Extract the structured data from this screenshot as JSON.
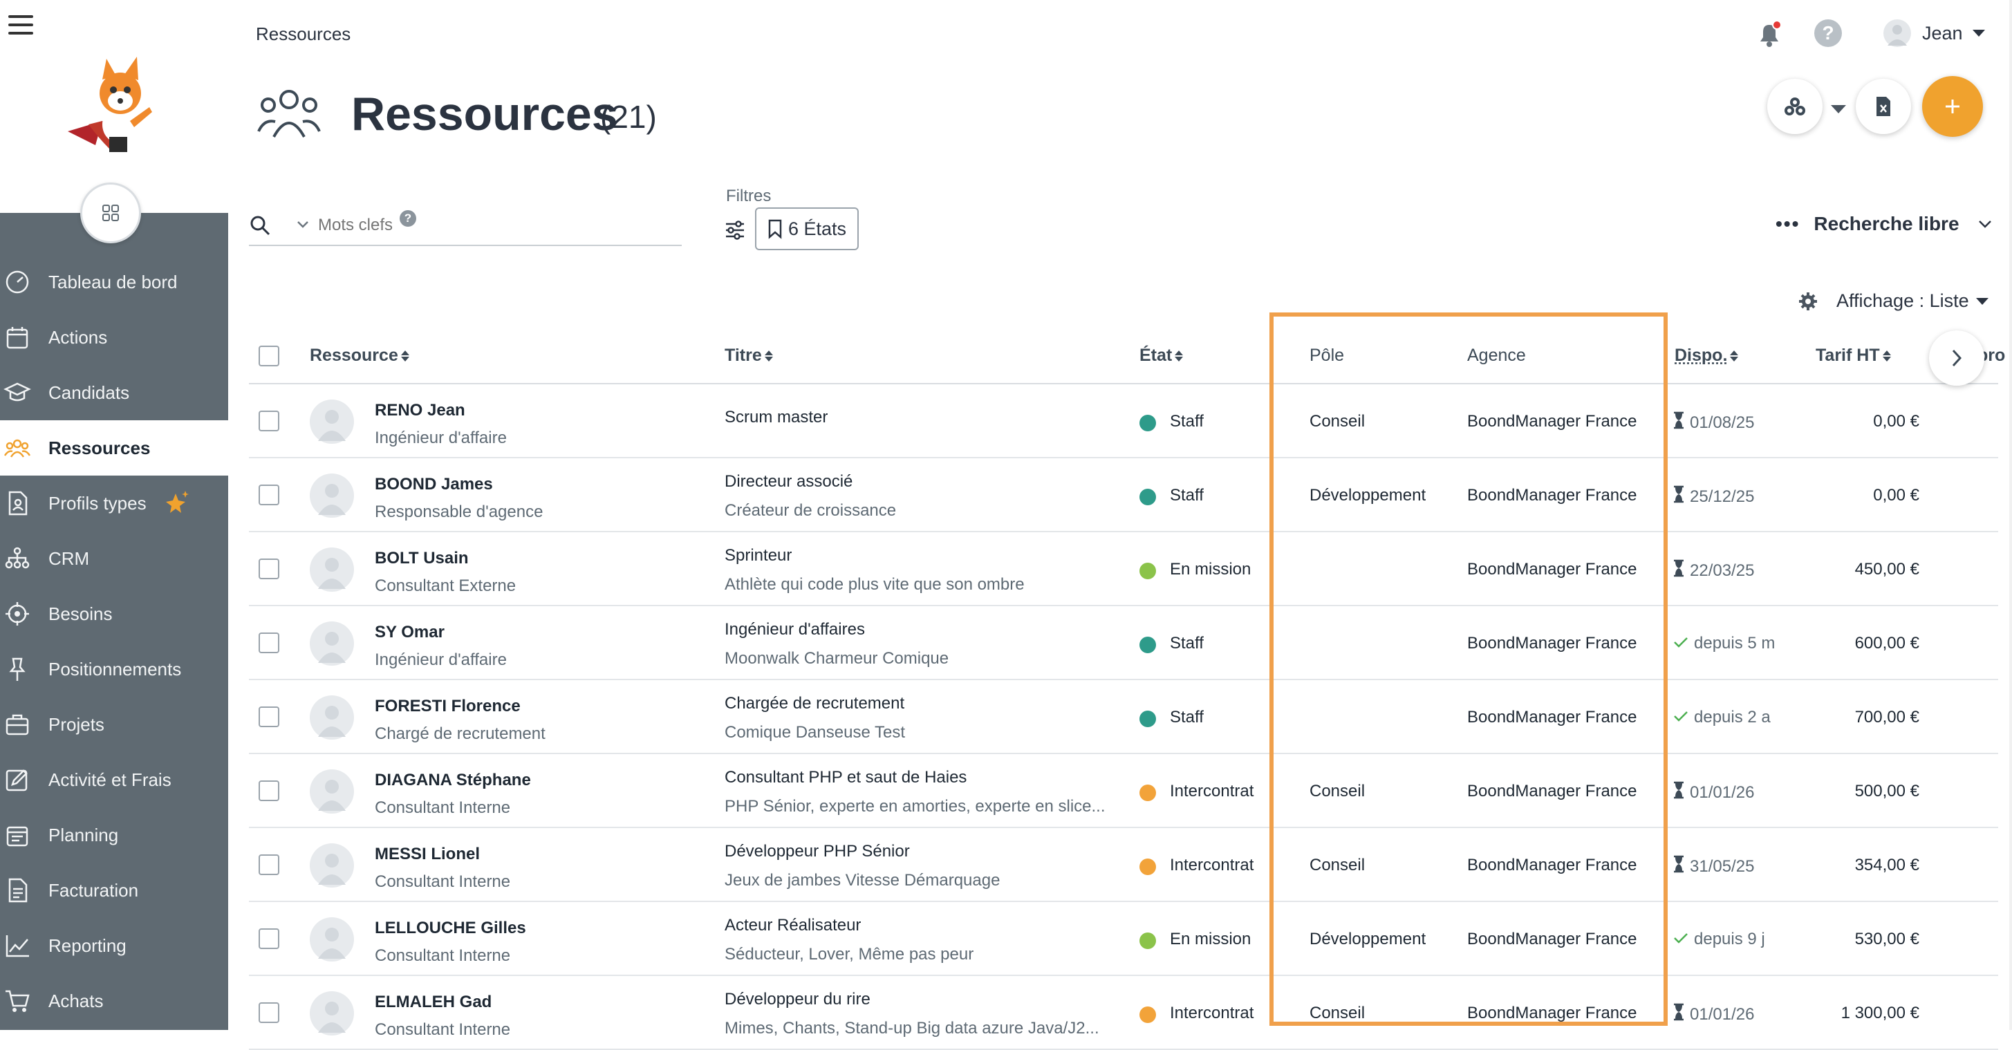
{
  "header": {
    "breadcrumb": "Ressources",
    "user_name": "Jean",
    "page_title": "Ressources",
    "page_count": "(21)"
  },
  "sidebar": {
    "items": [
      {
        "label": "Tableau de bord",
        "icon": "dashboard-icon"
      },
      {
        "label": "Actions",
        "icon": "calendar-icon"
      },
      {
        "label": "Candidats",
        "icon": "graduation-cap-icon"
      },
      {
        "label": "Ressources",
        "icon": "people-icon",
        "active": true
      },
      {
        "label": "Profils types",
        "icon": "document-user-icon"
      },
      {
        "label": "CRM",
        "icon": "org-chart-icon"
      },
      {
        "label": "Besoins",
        "icon": "target-icon"
      },
      {
        "label": "Positionnements",
        "icon": "pin-icon"
      },
      {
        "label": "Projets",
        "icon": "briefcase-icon"
      },
      {
        "label": "Activité et Frais",
        "icon": "edit-icon"
      },
      {
        "label": "Planning",
        "icon": "planner-icon"
      },
      {
        "label": "Facturation",
        "icon": "invoice-icon"
      },
      {
        "label": "Reporting",
        "icon": "chart-line-icon"
      },
      {
        "label": "Achats",
        "icon": "cart-icon"
      }
    ]
  },
  "search": {
    "placeholder": "Mots clefs",
    "filters_label": "Filtres",
    "states_button": "6 États",
    "free_search": "Recherche libre",
    "display_mode": "Affichage : Liste"
  },
  "columns": {
    "ressource": "Ressource",
    "titre": "Titre",
    "etat": "État",
    "pole": "Pôle",
    "agence": "Agence",
    "dispo": "Dispo.",
    "tarif": "Tarif HT",
    "cut": "pro"
  },
  "colors": {
    "accent": "#f0a22e",
    "staff": "#2e9b8a",
    "en_mission": "#8bc34a",
    "intercontrat": "#f2a33a",
    "sidebar": "#5f6a72",
    "highlight": "#f0a04b"
  },
  "rows": [
    {
      "name": "RENO Jean",
      "role": "Ingénieur d'affaire",
      "titre": "Scrum master",
      "sub": "",
      "etat": "Staff",
      "etat_color": "staff",
      "pole": "Conseil",
      "agence": "BoondManager France",
      "dispo": "01/08/25",
      "dispo_icon": "hourglass-icon",
      "tarif": "0,00 €"
    },
    {
      "name": "BOOND James",
      "role": "Responsable d'agence",
      "titre": "Directeur associé",
      "sub": "Créateur de croissance",
      "etat": "Staff",
      "etat_color": "staff",
      "pole": "Développement",
      "agence": "BoondManager France",
      "dispo": "25/12/25",
      "dispo_icon": "hourglass-icon",
      "tarif": "0,00 €"
    },
    {
      "name": "BOLT Usain",
      "role": "Consultant Externe",
      "titre": "Sprinteur",
      "sub": "Athlète qui code plus vite que son ombre",
      "etat": "En mission",
      "etat_color": "en_mission",
      "pole": "",
      "agence": "BoondManager France",
      "dispo": "22/03/25",
      "dispo_icon": "hourglass-icon",
      "tarif": "450,00 €"
    },
    {
      "name": "SY Omar",
      "role": "Ingénieur d'affaire",
      "titre": "Ingénieur d'affaires",
      "sub": "Moonwalk Charmeur Comique",
      "etat": "Staff",
      "etat_color": "staff",
      "pole": "",
      "agence": "BoondManager France",
      "dispo": "depuis 5 m",
      "dispo_icon": "check-icon",
      "tarif": "600,00 €"
    },
    {
      "name": "FORESTI Florence",
      "role": "Chargé de recrutement",
      "titre": "Chargée de recrutement",
      "sub": "Comique Danseuse Test",
      "etat": "Staff",
      "etat_color": "staff",
      "pole": "",
      "agence": "BoondManager France",
      "dispo": "depuis 2 a",
      "dispo_icon": "check-icon",
      "tarif": "700,00 €"
    },
    {
      "name": "DIAGANA Stéphane",
      "role": "Consultant Interne",
      "titre": "Consultant PHP et saut de Haies",
      "sub": "PHP Sénior, experte en amorties, experte en slice...",
      "etat": "Intercontrat",
      "etat_color": "intercontrat",
      "pole": "Conseil",
      "agence": "BoondManager France",
      "dispo": "01/01/26",
      "dispo_icon": "hourglass-icon",
      "tarif": "500,00 €"
    },
    {
      "name": "MESSI Lionel",
      "role": "Consultant Interne",
      "titre": "Développeur PHP Sénior",
      "sub": "Jeux de jambes Vitesse Démarquage",
      "etat": "Intercontrat",
      "etat_color": "intercontrat",
      "pole": "Conseil",
      "agence": "BoondManager France",
      "dispo": "31/05/25",
      "dispo_icon": "hourglass-icon",
      "tarif": "354,00 €"
    },
    {
      "name": "LELLOUCHE Gilles",
      "role": "Consultant Interne",
      "titre": "Acteur Réalisateur",
      "sub": "Séducteur, Lover, Même pas peur",
      "etat": "En mission",
      "etat_color": "en_mission",
      "pole": "Développement",
      "agence": "BoondManager France",
      "dispo": "depuis 9 j",
      "dispo_icon": "check-icon",
      "tarif": "530,00 €"
    },
    {
      "name": "ELMALEH Gad",
      "role": "Consultant Interne",
      "titre": "Développeur du rire",
      "sub": "Mimes, Chants, Stand-up Big data azure Java/J2...",
      "etat": "Intercontrat",
      "etat_color": "intercontrat",
      "pole": "Conseil",
      "agence": "BoondManager France",
      "dispo": "01/01/26",
      "dispo_icon": "hourglass-icon",
      "tarif": "1 300,00 €"
    }
  ]
}
